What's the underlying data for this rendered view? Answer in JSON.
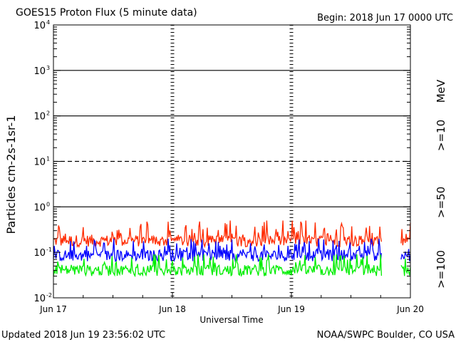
{
  "header": {
    "title": "GOES15 Proton Flux (5 minute data)",
    "begin": "Begin: 2018 Jun 17 0000 UTC"
  },
  "footer": {
    "updated": "Updated 2018 Jun 19 23:56:02 UTC",
    "credit": "NOAA/SWPC Boulder, CO USA"
  },
  "chart_data": {
    "type": "line",
    "title": "GOES15 Proton Flux (5 minute data)",
    "xlabel": "Universal Time",
    "ylabel": "Particles cm-2s-1sr-1",
    "yscale": "log",
    "ylim": [
      0.01,
      10000
    ],
    "xlim": [
      0,
      72
    ],
    "x_unit": "hours since 2018 Jun 17 0000 UTC",
    "x_ticks": [
      {
        "value": 0,
        "label": "Jun 17"
      },
      {
        "value": 24,
        "label": "Jun 18"
      },
      {
        "value": 48,
        "label": "Jun 19"
      },
      {
        "value": 72,
        "label": "Jun 20"
      }
    ],
    "y_ticks": [
      {
        "value": 0.01,
        "base": "10",
        "exp": "-2"
      },
      {
        "value": 0.1,
        "base": "10",
        "exp": "-1"
      },
      {
        "value": 1,
        "base": "10",
        "exp": "0"
      },
      {
        "value": 10,
        "base": "10",
        "exp": "1"
      },
      {
        "value": 100,
        "base": "10",
        "exp": "2"
      },
      {
        "value": 1000,
        "base": "10",
        "exp": "3"
      },
      {
        "value": 10000,
        "base": "10",
        "exp": "4"
      }
    ],
    "reference_lines": [
      {
        "value": 10,
        "style": "dashed"
      },
      {
        "value": 1,
        "style": "solid"
      },
      {
        "value": 100,
        "style": "solid"
      },
      {
        "value": 1000,
        "style": "solid"
      }
    ],
    "data_gap_hours": [
      66.2,
      70.0
    ],
    "legend_unit": "MeV",
    "series": [
      {
        "name": ">=10",
        "color": "#ff2a00",
        "baseline": 0.18,
        "range": [
          0.13,
          0.5
        ]
      },
      {
        "name": ">=50",
        "color": "#0000ff",
        "baseline": 0.085,
        "range": [
          0.055,
          0.2
        ]
      },
      {
        "name": ">=100",
        "color": "#00ee00",
        "baseline": 0.04,
        "range": [
          0.025,
          0.09
        ]
      }
    ]
  }
}
